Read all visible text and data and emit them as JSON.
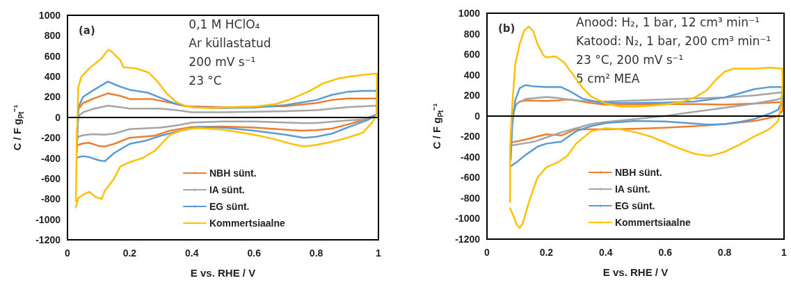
{
  "chart_data": [
    {
      "type": "line",
      "xlabel": "E vs. RHE / V",
      "ylabel": "C / F g$_{Pt}$⁻¹",
      "annotations": [
        "(a)",
        "0,1 M HClO₄",
        "Ar küllastatud",
        "200 mV s⁻¹",
        "23 °C"
      ],
      "xlim": [
        0,
        1
      ],
      "xticks": [
        0,
        0.2,
        0.4,
        0.6,
        0.8,
        1
      ],
      "ylim": [
        -1200,
        1000
      ],
      "yticks": [
        -1200,
        -1000,
        -800,
        -600,
        -400,
        -200,
        0,
        200,
        400,
        600,
        800,
        1000
      ],
      "grid": false,
      "legend": "bottom",
      "marker": "none",
      "line_style": "solid",
      "ref_lines": [
        {
          "axis": "y",
          "value": 0,
          "color": "#000000"
        }
      ],
      "series": [
        {
          "name": "NBH sünt.",
          "color": "#ed7d31",
          "x": [
            0.03,
            0.035,
            0.05,
            0.08,
            0.13,
            0.17,
            0.2,
            0.27,
            0.32,
            0.38,
            0.5,
            0.6,
            0.7,
            0.8,
            0.85,
            0.9,
            0.95,
            0.995,
            0.995,
            0.97,
            0.9,
            0.85,
            0.8,
            0.75,
            0.7,
            0.6,
            0.5,
            0.4,
            0.33,
            0.28,
            0.2,
            0.15,
            0.12,
            0.1,
            0.07,
            0.05,
            0.035,
            0.03
          ],
          "values": [
            -220,
            80,
            140,
            180,
            235,
            210,
            180,
            180,
            150,
            110,
            100,
            105,
            110,
            140,
            170,
            185,
            185,
            185,
            30,
            -10,
            -70,
            -110,
            -125,
            -130,
            -120,
            -100,
            -90,
            -95,
            -130,
            -180,
            -200,
            -260,
            -285,
            -280,
            -250,
            -255,
            -270,
            -280
          ]
        },
        {
          "name": "IA sünt.",
          "color": "#a5a5a5",
          "x": [
            0.03,
            0.035,
            0.05,
            0.08,
            0.13,
            0.17,
            0.2,
            0.3,
            0.35,
            0.4,
            0.5,
            0.6,
            0.7,
            0.8,
            0.9,
            0.995,
            0.995,
            0.95,
            0.9,
            0.8,
            0.75,
            0.6,
            0.5,
            0.4,
            0.35,
            0.3,
            0.2,
            0.15,
            0.12,
            0.08,
            0.05,
            0.035,
            0.03
          ],
          "values": [
            -160,
            10,
            50,
            80,
            115,
            100,
            85,
            85,
            70,
            50,
            50,
            55,
            60,
            70,
            100,
            115,
            30,
            -20,
            -30,
            -55,
            -55,
            -40,
            -40,
            -50,
            -80,
            -100,
            -115,
            -160,
            -170,
            -165,
            -175,
            -190,
            -220
          ]
        },
        {
          "name": "EG sünt.",
          "color": "#5b9bd5",
          "x": [
            0.03,
            0.035,
            0.05,
            0.08,
            0.13,
            0.17,
            0.2,
            0.26,
            0.3,
            0.35,
            0.4,
            0.5,
            0.6,
            0.7,
            0.8,
            0.85,
            0.9,
            0.95,
            0.995,
            0.995,
            0.97,
            0.9,
            0.85,
            0.8,
            0.76,
            0.7,
            0.6,
            0.5,
            0.42,
            0.35,
            0.3,
            0.25,
            0.2,
            0.15,
            0.12,
            0.1,
            0.07,
            0.05,
            0.035,
            0.03
          ],
          "values": [
            -340,
            100,
            200,
            260,
            350,
            300,
            270,
            240,
            190,
            130,
            100,
            90,
            95,
            120,
            170,
            220,
            250,
            260,
            260,
            30,
            -20,
            -100,
            -160,
            -190,
            -200,
            -170,
            -130,
            -100,
            -95,
            -140,
            -180,
            -230,
            -260,
            -350,
            -430,
            -420,
            -390,
            -380,
            -390,
            -400
          ]
        },
        {
          "name": "Kommertsiaalne",
          "color": "#ffc000",
          "x": [
            0.027,
            0.03,
            0.035,
            0.045,
            0.07,
            0.11,
            0.13,
            0.14,
            0.17,
            0.18,
            0.22,
            0.26,
            0.29,
            0.32,
            0.35,
            0.38,
            0.42,
            0.46,
            0.5,
            0.6,
            0.67,
            0.72,
            0.78,
            0.82,
            0.87,
            0.91,
            0.96,
            0.995,
            0.995,
            0.98,
            0.95,
            0.9,
            0.85,
            0.8,
            0.76,
            0.72,
            0.66,
            0.6,
            0.5,
            0.42,
            0.38,
            0.33,
            0.28,
            0.24,
            0.2,
            0.17,
            0.15,
            0.12,
            0.11,
            0.09,
            0.07,
            0.05,
            0.035,
            0.027
          ],
          "values": [
            -820,
            -200,
            300,
            400,
            480,
            580,
            660,
            650,
            560,
            490,
            480,
            440,
            350,
            230,
            150,
            110,
            95,
            90,
            95,
            105,
            130,
            180,
            260,
            330,
            380,
            400,
            420,
            430,
            30,
            -50,
            -150,
            -200,
            -240,
            -270,
            -285,
            -260,
            -210,
            -170,
            -120,
            -105,
            -115,
            -170,
            -330,
            -400,
            -440,
            -480,
            -600,
            -720,
            -800,
            -780,
            -730,
            -760,
            -790,
            -880
          ]
        }
      ]
    },
    {
      "type": "line",
      "xlabel": "E vs. RHE / V",
      "ylabel": "C / F g$_{Pt}$⁻¹",
      "annotations": [
        "(b)",
        "Anood: H₂, 1 bar, 12 cm³ min⁻¹",
        "Katood: N₂, 1 bar, 200 cm³ min⁻¹",
        "23 °C, 200 mV s⁻¹",
        "5 cm² MEA"
      ],
      "xlim": [
        0,
        1
      ],
      "xticks": [
        0,
        0.2,
        0.4,
        0.6,
        0.8,
        1
      ],
      "ylim": [
        -1200,
        1000
      ],
      "yticks": [
        -1200,
        -1000,
        -800,
        -600,
        -400,
        -200,
        0,
        200,
        400,
        600,
        800,
        1000
      ],
      "grid": false,
      "legend": "bottom",
      "marker": "none",
      "line_style": "solid",
      "ref_lines": [
        {
          "axis": "y",
          "value": 0,
          "color": "#000000"
        }
      ],
      "series": [
        {
          "name": "NBH sünt.",
          "color": "#ed7d31",
          "x": [
            0.08,
            0.085,
            0.095,
            0.11,
            0.13,
            0.2,
            0.24,
            0.27,
            0.3,
            0.35,
            0.4,
            0.5,
            0.6,
            0.7,
            0.8,
            0.9,
            0.995,
            0.995,
            0.98,
            0.95,
            0.9,
            0.8,
            0.7,
            0.6,
            0.5,
            0.4,
            0.3,
            0.25,
            0.2,
            0.17,
            0.13,
            0.08
          ],
          "values": [
            -200,
            20,
            100,
            140,
            150,
            145,
            150,
            160,
            150,
            125,
            110,
            110,
            115,
            115,
            110,
            120,
            135,
            50,
            0,
            -20,
            -50,
            -80,
            -100,
            -115,
            -125,
            -130,
            -130,
            -190,
            -180,
            -200,
            -230,
            -260
          ]
        },
        {
          "name": "IA sünt.",
          "color": "#a5a5a5",
          "x": [
            0.08,
            0.085,
            0.1,
            0.13,
            0.2,
            0.25,
            0.3,
            0.35,
            0.4,
            0.5,
            0.6,
            0.7,
            0.8,
            0.9,
            0.995,
            0.995,
            0.98,
            0.9,
            0.8,
            0.7,
            0.6,
            0.5,
            0.4,
            0.35,
            0.3,
            0.25,
            0.2,
            0.16,
            0.12,
            0.08
          ],
          "values": [
            -230,
            0,
            120,
            165,
            185,
            170,
            150,
            140,
            140,
            150,
            160,
            170,
            180,
            200,
            230,
            180,
            160,
            120,
            80,
            40,
            0,
            -30,
            -60,
            -80,
            -120,
            -160,
            -210,
            -250,
            -270,
            -290
          ]
        },
        {
          "name": "EG sünt.",
          "color": "#5b9bd5",
          "x": [
            0.08,
            0.085,
            0.095,
            0.11,
            0.13,
            0.15,
            0.2,
            0.25,
            0.28,
            0.32,
            0.38,
            0.45,
            0.6,
            0.7,
            0.8,
            0.85,
            0.9,
            0.95,
            0.995,
            0.995,
            0.98,
            0.95,
            0.9,
            0.85,
            0.8,
            0.75,
            0.6,
            0.5,
            0.4,
            0.35,
            0.3,
            0.25,
            0.2,
            0.17,
            0.13,
            0.1,
            0.08
          ],
          "values": [
            -430,
            -100,
            150,
            270,
            300,
            290,
            280,
            280,
            240,
            170,
            130,
            125,
            130,
            140,
            180,
            220,
            260,
            280,
            280,
            150,
            60,
            20,
            -30,
            -60,
            -80,
            -85,
            -55,
            -50,
            -70,
            -100,
            -150,
            -250,
            -270,
            -300,
            -380,
            -450,
            -490
          ]
        },
        {
          "name": "Kommertsiaalne",
          "color": "#ffc000",
          "x": [
            0.078,
            0.078,
            0.085,
            0.095,
            0.11,
            0.125,
            0.14,
            0.155,
            0.17,
            0.19,
            0.2,
            0.23,
            0.26,
            0.29,
            0.32,
            0.35,
            0.4,
            0.45,
            0.5,
            0.6,
            0.66,
            0.7,
            0.74,
            0.77,
            0.8,
            0.83,
            0.9,
            0.95,
            0.995,
            0.995,
            0.99,
            0.98,
            0.95,
            0.9,
            0.85,
            0.8,
            0.75,
            0.7,
            0.65,
            0.6,
            0.55,
            0.5,
            0.45,
            0.4,
            0.35,
            0.3,
            0.27,
            0.24,
            0.2,
            0.17,
            0.14,
            0.12,
            0.11,
            0.1,
            0.09,
            0.078
          ],
          "values": [
            -840,
            -300,
            100,
            500,
            700,
            830,
            870,
            830,
            700,
            590,
            570,
            580,
            520,
            400,
            280,
            190,
            120,
            90,
            90,
            110,
            140,
            180,
            250,
            350,
            430,
            460,
            460,
            470,
            460,
            300,
            100,
            -50,
            -130,
            -200,
            -280,
            -350,
            -390,
            -370,
            -320,
            -260,
            -200,
            -160,
            -130,
            -120,
            -150,
            -270,
            -390,
            -450,
            -500,
            -600,
            -850,
            -1050,
            -1090,
            -1060,
            -980,
            -900
          ]
        }
      ]
    }
  ]
}
